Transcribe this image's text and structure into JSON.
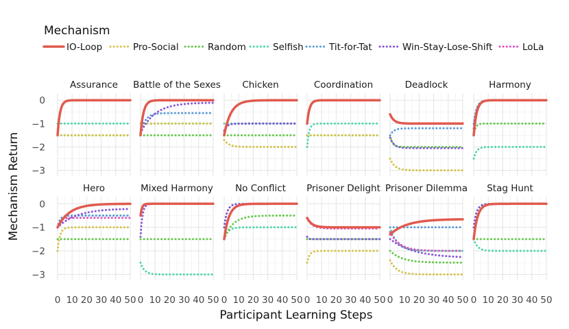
{
  "chart_data": {
    "type": "line",
    "legend": {
      "title": "Mechanism",
      "placement": "top-left",
      "items": [
        {
          "name": "IO-Loop",
          "color": "#e05a4e",
          "style": "solid"
        },
        {
          "name": "Pro-Social",
          "color": "#d4c24a",
          "style": "dotted"
        },
        {
          "name": "Random",
          "color": "#64c94b",
          "style": "dotted"
        },
        {
          "name": "Selfish",
          "color": "#4fd6a8",
          "style": "dotted"
        },
        {
          "name": "Tit-for-Tat",
          "color": "#5a9ad8",
          "style": "dotted"
        },
        {
          "name": "Win-Stay-Lose-Shift",
          "color": "#8556d8",
          "style": "dotted"
        },
        {
          "name": "LoLa",
          "color": "#e04fbf",
          "style": "dotted"
        }
      ]
    },
    "xlabel": "Participant Learning Steps",
    "ylabel": "Mechanism Return",
    "xlim": [
      0,
      50
    ],
    "xticks": [
      0,
      10,
      20,
      30,
      40,
      50
    ],
    "ylim": [
      -3.25,
      0.3
    ],
    "yticks": [
      0,
      -1,
      -2,
      -3
    ],
    "grid": true,
    "facet_layout": {
      "rows": 2,
      "cols": 6
    },
    "series_model": "each series rises or falls from 'start' at step 0 to 'end' by about step 'settle'",
    "panels": [
      {
        "title": "Assurance",
        "series": [
          {
            "name": "IO-Loop",
            "start": -1.5,
            "end": 0,
            "settle": 5
          },
          {
            "name": "Pro-Social",
            "start": -1.5,
            "end": -1.5,
            "settle": 1
          },
          {
            "name": "Random",
            "start": -1.5,
            "end": -1.5,
            "settle": 1
          },
          {
            "name": "Selfish",
            "start": -1.0,
            "end": -1.0,
            "settle": 1
          },
          {
            "name": "Tit-for-Tat",
            "start": -1.5,
            "end": 0,
            "settle": 5
          },
          {
            "name": "Win-Stay-Lose-Shift",
            "start": -1.5,
            "end": 0,
            "settle": 5
          },
          {
            "name": "LoLa",
            "start": -1.5,
            "end": 0,
            "settle": 5
          }
        ]
      },
      {
        "title": "Battle of the Sexes",
        "series": [
          {
            "name": "IO-Loop",
            "start": -1.5,
            "end": 0,
            "settle": 6
          },
          {
            "name": "Pro-Social",
            "start": -1.0,
            "end": -1.0,
            "settle": 1
          },
          {
            "name": "Random",
            "start": -1.5,
            "end": -1.5,
            "settle": 1
          },
          {
            "name": "Selfish",
            "start": -1.0,
            "end": -1.0,
            "settle": 1
          },
          {
            "name": "Tit-for-Tat",
            "start": -1.4,
            "end": -0.55,
            "settle": 10
          },
          {
            "name": "Win-Stay-Lose-Shift",
            "start": -1.4,
            "end": -0.1,
            "settle": 30
          },
          {
            "name": "LoLa",
            "start": -1.5,
            "end": 0,
            "settle": 6
          }
        ]
      },
      {
        "title": "Chicken",
        "series": [
          {
            "name": "IO-Loop",
            "start": -1.5,
            "end": 0,
            "settle": 14
          },
          {
            "name": "Pro-Social",
            "start": -1.7,
            "end": -2.0,
            "settle": 10
          },
          {
            "name": "Random",
            "start": -1.5,
            "end": -1.5,
            "settle": 1
          },
          {
            "name": "Selfish",
            "start": -1.0,
            "end": -1.0,
            "settle": 1
          },
          {
            "name": "Tit-for-Tat",
            "start": -1.3,
            "end": -1.0,
            "settle": 6
          },
          {
            "name": "Win-Stay-Lose-Shift",
            "start": -1.3,
            "end": -1.0,
            "settle": 6
          },
          {
            "name": "LoLa",
            "start": -1.5,
            "end": 0,
            "settle": 14
          }
        ]
      },
      {
        "title": "Coordination",
        "series": [
          {
            "name": "IO-Loop",
            "start": -1.0,
            "end": 0,
            "settle": 5
          },
          {
            "name": "Pro-Social",
            "start": -1.5,
            "end": -1.5,
            "settle": 1
          },
          {
            "name": "Random",
            "start": -1.5,
            "end": -1.5,
            "settle": 1
          },
          {
            "name": "Selfish",
            "start": -2.0,
            "end": -1.0,
            "settle": 4
          },
          {
            "name": "Tit-for-Tat",
            "start": -1.0,
            "end": 0,
            "settle": 5
          },
          {
            "name": "Win-Stay-Lose-Shift",
            "start": -1.0,
            "end": 0,
            "settle": 5
          },
          {
            "name": "LoLa",
            "start": -1.0,
            "end": 0,
            "settle": 5
          }
        ]
      },
      {
        "title": "Deadlock",
        "series": [
          {
            "name": "IO-Loop",
            "start": -0.6,
            "end": -1.0,
            "settle": 8
          },
          {
            "name": "Pro-Social",
            "start": -2.5,
            "end": -3.0,
            "settle": 10
          },
          {
            "name": "Random",
            "start": -1.5,
            "end": -2.0,
            "settle": 5
          },
          {
            "name": "Selfish",
            "start": -0.6,
            "end": -1.0,
            "settle": 8
          },
          {
            "name": "Tit-for-Tat",
            "start": -1.5,
            "end": -1.2,
            "settle": 8
          },
          {
            "name": "Win-Stay-Lose-Shift",
            "start": -1.6,
            "end": -2.05,
            "settle": 8
          },
          {
            "name": "LoLa",
            "start": -0.6,
            "end": -1.0,
            "settle": 8
          }
        ]
      },
      {
        "title": "Harmony",
        "series": [
          {
            "name": "IO-Loop",
            "start": -1.5,
            "end": 0,
            "settle": 6
          },
          {
            "name": "Pro-Social",
            "start": -1.0,
            "end": 0,
            "settle": 6
          },
          {
            "name": "Random",
            "start": -1.5,
            "end": -1.0,
            "settle": 4
          },
          {
            "name": "Selfish",
            "start": -2.5,
            "end": -2.0,
            "settle": 6
          },
          {
            "name": "Tit-for-Tat",
            "start": -1.0,
            "end": 0,
            "settle": 6
          },
          {
            "name": "Win-Stay-Lose-Shift",
            "start": -1.2,
            "end": 0,
            "settle": 6
          },
          {
            "name": "LoLa",
            "start": -1.5,
            "end": 0,
            "settle": 6
          }
        ]
      },
      {
        "title": "Hero",
        "series": [
          {
            "name": "IO-Loop",
            "start": -1.0,
            "end": 0,
            "settle": 25
          },
          {
            "name": "Pro-Social",
            "start": -2.0,
            "end": -1.0,
            "settle": 5
          },
          {
            "name": "Random",
            "start": -1.5,
            "end": -1.5,
            "settle": 1
          },
          {
            "name": "Selfish",
            "start": -1.0,
            "end": -0.5,
            "settle": 5
          },
          {
            "name": "Tit-for-Tat",
            "start": -1.0,
            "end": -0.5,
            "settle": 5
          },
          {
            "name": "Win-Stay-Lose-Shift",
            "start": -1.0,
            "end": -0.2,
            "settle": 40
          },
          {
            "name": "LoLa",
            "start": -1.0,
            "end": -0.6,
            "settle": 5
          }
        ]
      },
      {
        "title": "Mixed Harmony",
        "series": [
          {
            "name": "IO-Loop",
            "start": -0.5,
            "end": 0,
            "settle": 3
          },
          {
            "name": "Pro-Social",
            "start": -0.5,
            "end": 0,
            "settle": 3
          },
          {
            "name": "Random",
            "start": -1.5,
            "end": -1.5,
            "settle": 1
          },
          {
            "name": "Selfish",
            "start": -2.5,
            "end": -3.0,
            "settle": 8
          },
          {
            "name": "Tit-for-Tat",
            "start": -0.5,
            "end": 0,
            "settle": 3
          },
          {
            "name": "Win-Stay-Lose-Shift",
            "start": -1.4,
            "end": 0,
            "settle": 4
          },
          {
            "name": "LoLa",
            "start": -0.5,
            "end": 0,
            "settle": 3
          }
        ]
      },
      {
        "title": "No Conflict",
        "series": [
          {
            "name": "IO-Loop",
            "start": -1.5,
            "end": 0,
            "settle": 10
          },
          {
            "name": "Pro-Social",
            "start": -1.0,
            "end": 0,
            "settle": 6
          },
          {
            "name": "Random",
            "start": -1.5,
            "end": -0.5,
            "settle": 18
          },
          {
            "name": "Selfish",
            "start": -1.5,
            "end": -1.0,
            "settle": 8
          },
          {
            "name": "Tit-for-Tat",
            "start": -1.0,
            "end": 0,
            "settle": 6
          },
          {
            "name": "Win-Stay-Lose-Shift",
            "start": -1.0,
            "end": 0,
            "settle": 6
          },
          {
            "name": "LoLa",
            "start": -1.5,
            "end": 0,
            "settle": 10
          }
        ]
      },
      {
        "title": "Prisoner Delight",
        "series": [
          {
            "name": "IO-Loop",
            "start": -0.6,
            "end": -1.0,
            "settle": 10
          },
          {
            "name": "Pro-Social",
            "start": -2.5,
            "end": -2.0,
            "settle": 5
          },
          {
            "name": "Random",
            "start": -1.5,
            "end": -1.5,
            "settle": 1
          },
          {
            "name": "Selfish",
            "start": -0.6,
            "end": -1.0,
            "settle": 10
          },
          {
            "name": "Tit-for-Tat",
            "start": -1.4,
            "end": -1.5,
            "settle": 2
          },
          {
            "name": "Win-Stay-Lose-Shift",
            "start": -1.4,
            "end": -1.5,
            "settle": 2
          },
          {
            "name": "LoLa",
            "start": -0.6,
            "end": -1.05,
            "settle": 10
          }
        ]
      },
      {
        "title": "Prisoner Dilemma",
        "series": [
          {
            "name": "IO-Loop",
            "start": -1.3,
            "end": -0.65,
            "settle": 35
          },
          {
            "name": "Pro-Social",
            "start": -2.4,
            "end": -3.0,
            "settle": 14
          },
          {
            "name": "Random",
            "start": -2.0,
            "end": -2.5,
            "settle": 25
          },
          {
            "name": "Selfish",
            "start": -1.0,
            "end": -2.0,
            "settle": 15
          },
          {
            "name": "Tit-for-Tat",
            "start": -1.0,
            "end": -1.0,
            "settle": 1
          },
          {
            "name": "Win-Stay-Lose-Shift",
            "start": -1.5,
            "end": -2.3,
            "settle": 50
          },
          {
            "name": "LoLa",
            "start": -1.2,
            "end": -2.0,
            "settle": 20
          }
        ]
      },
      {
        "title": "Stag Hunt",
        "series": [
          {
            "name": "IO-Loop",
            "start": -1.5,
            "end": 0,
            "settle": 8
          },
          {
            "name": "Pro-Social",
            "start": -1.0,
            "end": 0,
            "settle": 6
          },
          {
            "name": "Random",
            "start": -1.5,
            "end": -1.5,
            "settle": 1
          },
          {
            "name": "Selfish",
            "start": -1.5,
            "end": -2.0,
            "settle": 8
          },
          {
            "name": "Tit-for-Tat",
            "start": -1.0,
            "end": 0,
            "settle": 6
          },
          {
            "name": "Win-Stay-Lose-Shift",
            "start": -1.0,
            "end": 0,
            "settle": 6
          },
          {
            "name": "LoLa",
            "start": -1.5,
            "end": 0,
            "settle": 8
          }
        ]
      }
    ]
  }
}
